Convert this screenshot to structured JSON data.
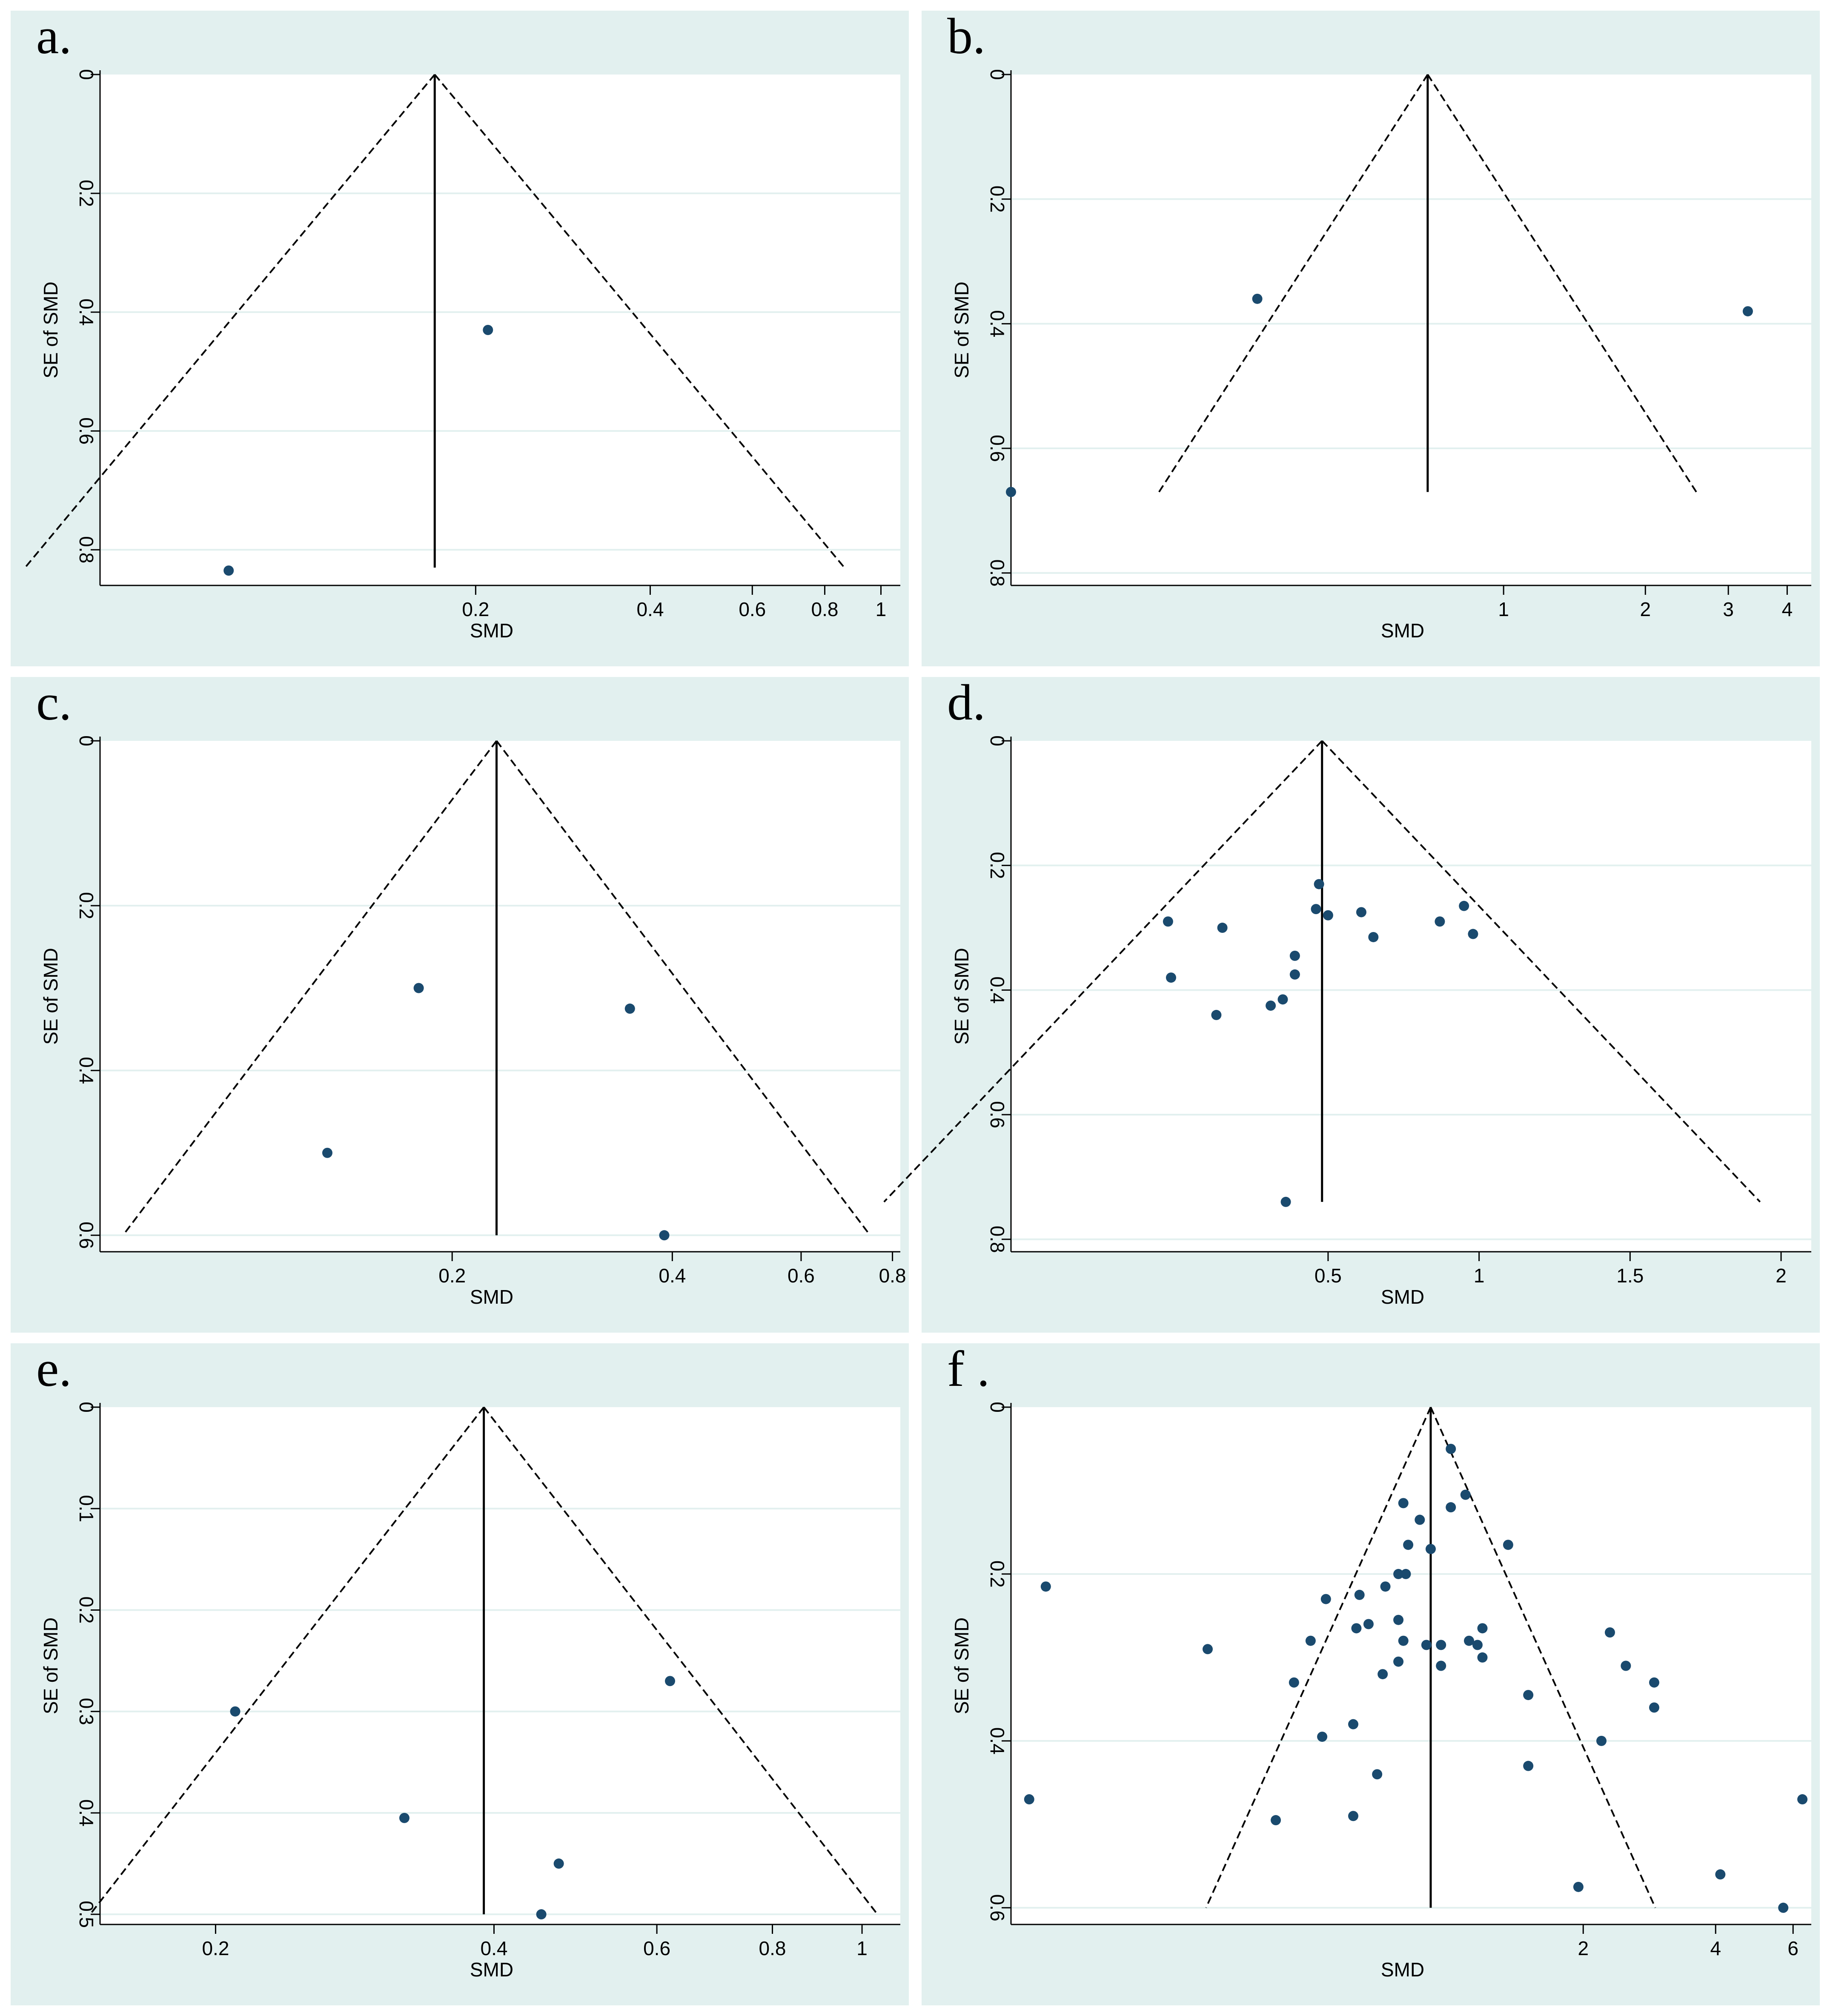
{
  "figure_title": "",
  "colors": {
    "panel_background": "#e2f0ef",
    "plot_background": "#ffffff",
    "grid": "#e2f0ef",
    "point": "#1a4a6e",
    "line": "#000000"
  },
  "chart_data": [
    {
      "panel": "a.",
      "type": "scatter",
      "subtype": "funnel",
      "xlabel": "SMD",
      "ylabel": "SE of SMD",
      "x_scale": "log",
      "xlim": [
        0.045,
        1.08
      ],
      "ylim": [
        0,
        0.86
      ],
      "x_ticks": [
        0.2,
        0.4,
        0.6,
        0.8,
        1
      ],
      "x_tick_labels": [
        "0.2",
        "0.4",
        "0.6",
        "0.8",
        "1"
      ],
      "y_ticks": [
        0,
        0.2,
        0.4,
        0.6,
        0.8
      ],
      "y_tick_labels": [
        "0",
        "0.2",
        "0.4",
        "0.6",
        "0.8"
      ],
      "pooled_estimate": 0.17,
      "funnel_max_se": 0.83,
      "points": [
        {
          "x": 0.21,
          "y": 0.43
        },
        {
          "x": 0.075,
          "y": 0.835
        }
      ]
    },
    {
      "panel": "b.",
      "type": "scatter",
      "subtype": "funnel",
      "xlabel": "SMD",
      "ylabel": "SE of SMD",
      "x_scale": "log",
      "xlim": [
        0.09,
        4.5
      ],
      "ylim": [
        0,
        0.82
      ],
      "x_ticks": [
        1,
        2,
        3,
        4
      ],
      "x_tick_labels": [
        "1",
        "2",
        "3",
        "4"
      ],
      "y_ticks": [
        0,
        0.2,
        0.4,
        0.6,
        0.8
      ],
      "y_tick_labels": [
        "0",
        "0.2",
        "0.4",
        "0.6",
        "0.8"
      ],
      "pooled_estimate": 0.69,
      "funnel_max_se": 0.67,
      "points": [
        {
          "x": 0.3,
          "y": 0.36
        },
        {
          "x": 3.3,
          "y": 0.38
        },
        {
          "x": 0.09,
          "y": 0.67
        }
      ]
    },
    {
      "panel": "c.",
      "type": "scatter",
      "subtype": "funnel",
      "xlabel": "SMD",
      "ylabel": "SE of SMD",
      "x_scale": "log",
      "xlim": [
        0.066,
        0.82
      ],
      "ylim": [
        0,
        0.62
      ],
      "x_ticks": [
        0.2,
        0.4,
        0.6,
        0.8
      ],
      "x_tick_labels": [
        "0.2",
        "0.4",
        "0.6",
        "0.8"
      ],
      "y_ticks": [
        0,
        0.2,
        0.4,
        0.6
      ],
      "y_tick_labels": [
        "0",
        "0.2",
        "0.4",
        "0.6"
      ],
      "pooled_estimate": 0.23,
      "funnel_max_se": 0.6,
      "points": [
        {
          "x": 0.18,
          "y": 0.3
        },
        {
          "x": 0.35,
          "y": 0.325
        },
        {
          "x": 0.135,
          "y": 0.5
        },
        {
          "x": 0.39,
          "y": 0.6
        }
      ]
    },
    {
      "panel": "d.",
      "type": "scatter",
      "subtype": "funnel",
      "xlabel": "SMD",
      "ylabel": "SE of SMD",
      "x_scale": "linear",
      "xlim": [
        -0.55,
        2.1
      ],
      "ylim": [
        0,
        0.82
      ],
      "x_ticks": [
        0.5,
        1,
        1.5,
        2
      ],
      "x_tick_labels": [
        "0.5",
        "1",
        "1.5",
        "2"
      ],
      "y_ticks": [
        0,
        0.2,
        0.4,
        0.6,
        0.8
      ],
      "y_tick_labels": [
        "0",
        "0.2",
        "0.4",
        "0.6",
        "0.8"
      ],
      "pooled_estimate": 0.48,
      "funnel_max_se": 0.74,
      "points": [
        {
          "x": 0.47,
          "y": 0.23
        },
        {
          "x": 0.46,
          "y": 0.27
        },
        {
          "x": 0.5,
          "y": 0.28
        },
        {
          "x": 0.61,
          "y": 0.275
        },
        {
          "x": 0.65,
          "y": 0.315
        },
        {
          "x": 0.87,
          "y": 0.29
        },
        {
          "x": 0.95,
          "y": 0.265
        },
        {
          "x": 0.98,
          "y": 0.31
        },
        {
          "x": -0.03,
          "y": 0.29
        },
        {
          "x": 0.15,
          "y": 0.3
        },
        {
          "x": -0.02,
          "y": 0.38
        },
        {
          "x": 0.13,
          "y": 0.44
        },
        {
          "x": 0.31,
          "y": 0.425
        },
        {
          "x": 0.35,
          "y": 0.415
        },
        {
          "x": 0.39,
          "y": 0.345
        },
        {
          "x": 0.39,
          "y": 0.375
        },
        {
          "x": 0.36,
          "y": 0.74
        }
      ]
    },
    {
      "panel": "e.",
      "type": "scatter",
      "subtype": "funnel",
      "xlabel": "SMD",
      "ylabel": "SE of SMD",
      "x_scale": "log",
      "xlim": [
        0.15,
        1.1
      ],
      "ylim": [
        0,
        0.51
      ],
      "x_ticks": [
        0.2,
        0.4,
        0.6,
        0.8,
        1
      ],
      "x_tick_labels": [
        "0.2",
        "0.4",
        "0.6",
        "0.8",
        "1"
      ],
      "y_ticks": [
        0,
        0.1,
        0.2,
        0.3,
        0.4,
        0.5
      ],
      "y_tick_labels": [
        "0",
        "0.1",
        "0.2",
        "0.3",
        "0.4",
        "0.5"
      ],
      "pooled_estimate": 0.39,
      "funnel_max_se": 0.5,
      "points": [
        {
          "x": 0.21,
          "y": 0.3
        },
        {
          "x": 0.32,
          "y": 0.405
        },
        {
          "x": 0.62,
          "y": 0.27
        },
        {
          "x": 0.47,
          "y": 0.45
        },
        {
          "x": 0.45,
          "y": 0.5
        }
      ]
    },
    {
      "panel": "f .",
      "type": "scatter",
      "subtype": "funnel",
      "xlabel": "SMD",
      "ylabel": "SE of SMD",
      "x_scale": "log",
      "xlim": [
        0.1,
        6.6
      ],
      "ylim": [
        0,
        0.62
      ],
      "x_ticks": [
        2,
        4,
        6
      ],
      "x_tick_labels": [
        "2",
        "4",
        "6"
      ],
      "y_ticks": [
        0,
        0.2,
        0.4,
        0.6
      ],
      "y_tick_labels": [
        "0",
        "0.2",
        "0.4",
        "0.6"
      ],
      "pooled_estimate": 0.9,
      "funnel_max_se": 0.6,
      "points": [
        {
          "x": 1.0,
          "y": 0.05
        },
        {
          "x": 1.08,
          "y": 0.105
        },
        {
          "x": 0.78,
          "y": 0.115
        },
        {
          "x": 1.0,
          "y": 0.12
        },
        {
          "x": 0.85,
          "y": 0.135
        },
        {
          "x": 1.35,
          "y": 0.165
        },
        {
          "x": 0.8,
          "y": 0.165
        },
        {
          "x": 0.9,
          "y": 0.17
        },
        {
          "x": 0.76,
          "y": 0.2
        },
        {
          "x": 0.79,
          "y": 0.2
        },
        {
          "x": 0.71,
          "y": 0.215
        },
        {
          "x": 0.12,
          "y": 0.215
        },
        {
          "x": 0.62,
          "y": 0.225
        },
        {
          "x": 0.52,
          "y": 0.23
        },
        {
          "x": 0.76,
          "y": 0.255
        },
        {
          "x": 0.65,
          "y": 0.26
        },
        {
          "x": 0.61,
          "y": 0.265
        },
        {
          "x": 0.78,
          "y": 0.28
        },
        {
          "x": 0.88,
          "y": 0.285
        },
        {
          "x": 0.95,
          "y": 0.285
        },
        {
          "x": 1.1,
          "y": 0.28
        },
        {
          "x": 1.15,
          "y": 0.285
        },
        {
          "x": 1.18,
          "y": 0.265
        },
        {
          "x": 0.48,
          "y": 0.28
        },
        {
          "x": 0.28,
          "y": 0.29
        },
        {
          "x": 1.18,
          "y": 0.3
        },
        {
          "x": 0.76,
          "y": 0.305
        },
        {
          "x": 0.95,
          "y": 0.31
        },
        {
          "x": 0.7,
          "y": 0.32
        },
        {
          "x": 0.44,
          "y": 0.33
        },
        {
          "x": 1.5,
          "y": 0.345
        },
        {
          "x": 2.3,
          "y": 0.27
        },
        {
          "x": 2.5,
          "y": 0.31
        },
        {
          "x": 2.9,
          "y": 0.33
        },
        {
          "x": 2.9,
          "y": 0.36
        },
        {
          "x": 0.6,
          "y": 0.38
        },
        {
          "x": 0.51,
          "y": 0.395
        },
        {
          "x": 2.2,
          "y": 0.4
        },
        {
          "x": 1.5,
          "y": 0.43
        },
        {
          "x": 0.68,
          "y": 0.44
        },
        {
          "x": 0.11,
          "y": 0.47
        },
        {
          "x": 0.4,
          "y": 0.495
        },
        {
          "x": 0.6,
          "y": 0.49
        },
        {
          "x": 1.95,
          "y": 0.575
        },
        {
          "x": 4.1,
          "y": 0.56
        },
        {
          "x": 6.3,
          "y": 0.47
        },
        {
          "x": 5.7,
          "y": 0.6
        }
      ]
    }
  ]
}
